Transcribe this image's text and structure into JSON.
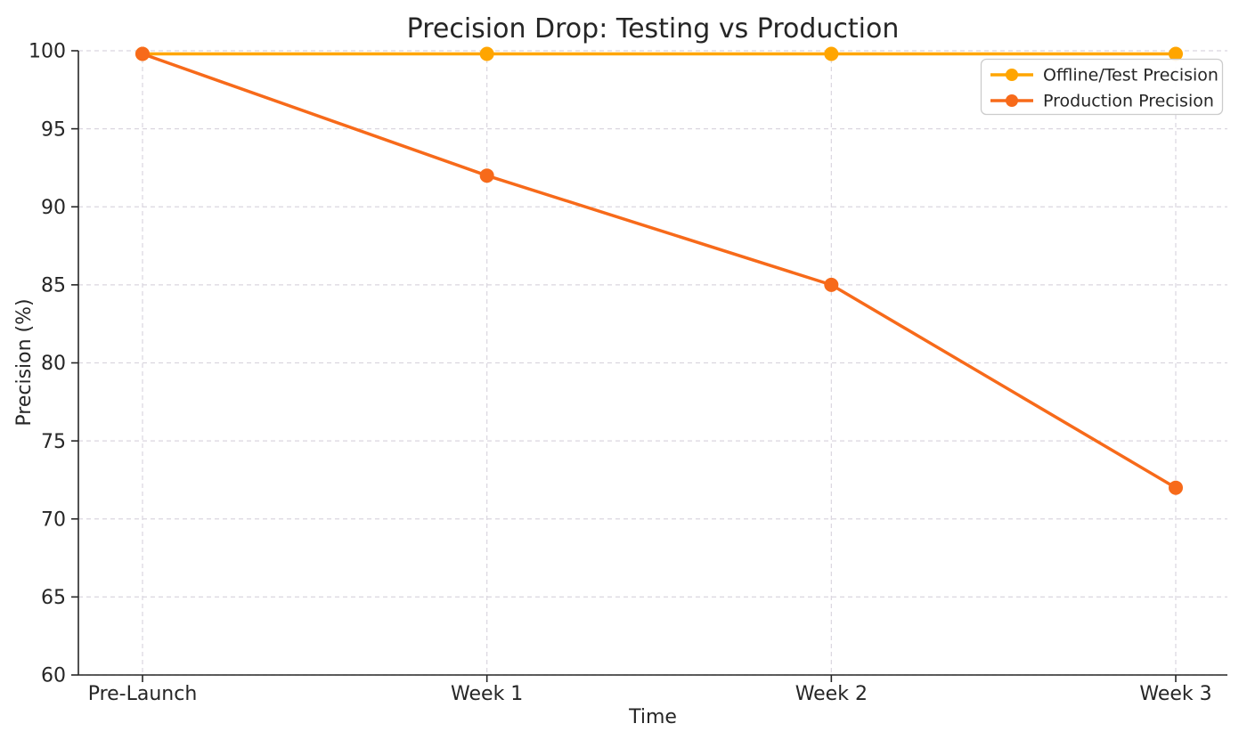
{
  "chart_data": {
    "type": "line",
    "title": "Precision Drop: Testing vs Production",
    "xlabel": "Time",
    "ylabel": "Precision (%)",
    "categories": [
      "Pre-Launch",
      "Week 1",
      "Week 2",
      "Week 3"
    ],
    "series": [
      {
        "name": "Offline/Test Precision",
        "color": "#FFA500",
        "values": [
          99.8,
          99.8,
          99.8,
          99.8
        ]
      },
      {
        "name": "Production Precision",
        "color": "#F76A1A",
        "values": [
          99.8,
          92,
          85,
          72
        ]
      }
    ],
    "ylim": [
      60,
      100
    ],
    "yticks": [
      60,
      65,
      70,
      75,
      80,
      85,
      90,
      95,
      100
    ],
    "grid": true,
    "grid_linestyle": "dashed",
    "legend_position": "upper right",
    "marker": "circle"
  },
  "colors": {
    "grid": "#d6d2dc",
    "spine": "#262626",
    "text": "#262626",
    "legend_border": "#cccccc",
    "background": "#ffffff"
  }
}
